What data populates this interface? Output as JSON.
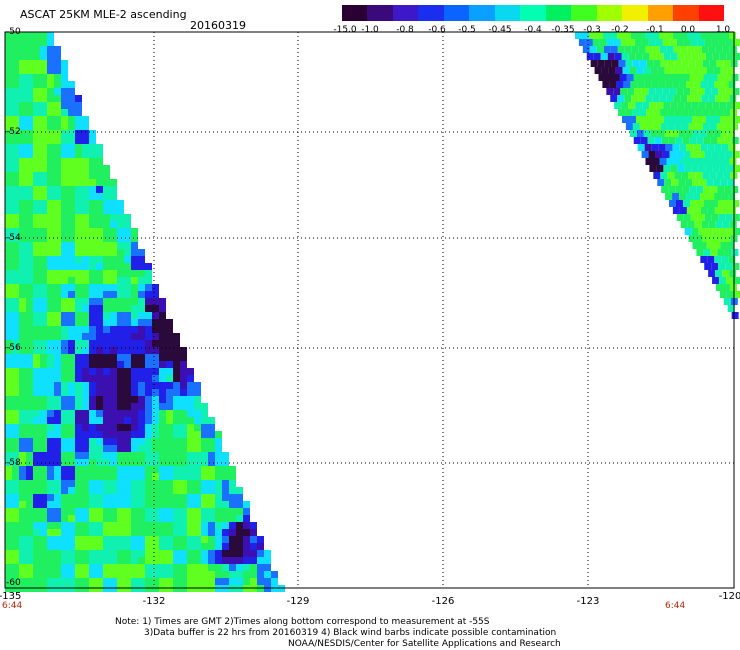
{
  "title": "ASCAT 25KM MLE-2 ascending",
  "date": "20160319",
  "colorbar": {
    "labels": [
      "-15.0",
      "-1.0",
      "-0.8",
      "-0.6",
      "-0.5",
      "-0.45",
      "-0.4",
      "-0.35",
      "-0.3",
      "-0.2",
      "-0.1",
      "0.0",
      "1.0"
    ],
    "colors": [
      "#2a0033",
      "#3a0a7a",
      "#3c18c8",
      "#1a2ef0",
      "#0a64ff",
      "#0aa0ff",
      "#0ad8f0",
      "#00ffb0",
      "#00f060",
      "#40ff20",
      "#a0ff00",
      "#f0f000",
      "#ffa000",
      "#ff4000",
      "#ff1010"
    ]
  },
  "axes": {
    "lon_ticks": [
      "-135",
      "-132",
      "-129",
      "-126",
      "-123",
      "-120"
    ],
    "lat_ticks": [
      "-50",
      "-52",
      "-54",
      "-56",
      "-58",
      "-60"
    ]
  },
  "times": {
    "left": "6:44",
    "right": "6:44"
  },
  "notes": {
    "line1": "Note: 1) Times are GMT 2)Times along bottom correspond to measurement at -55S",
    "line2": "3)Data buffer is 22 hrs from 20160319 4) Black wind barbs indicate possible contamination",
    "credit": "NOAA/NESDIS/Center for Satellite Applications and Research"
  }
}
